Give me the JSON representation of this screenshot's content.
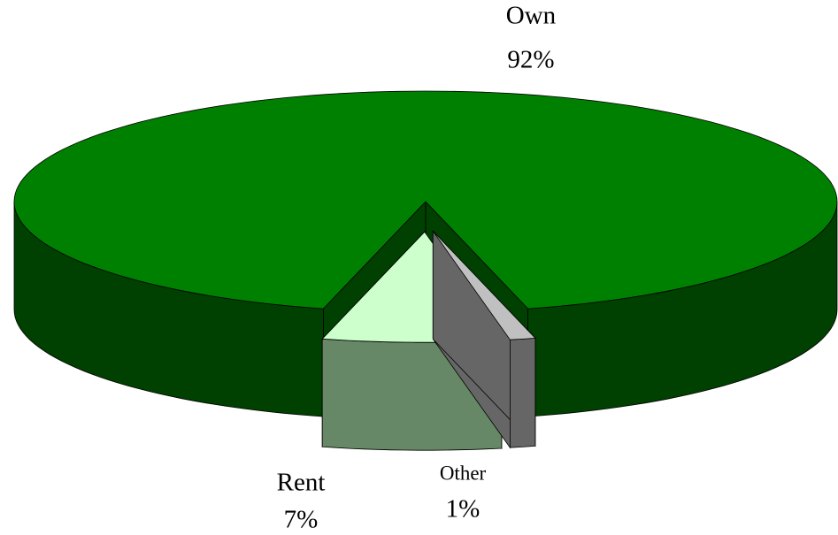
{
  "chart_data": {
    "type": "pie",
    "three_d": true,
    "categories": [
      "Own",
      "Rent",
      "Other"
    ],
    "values": [
      92,
      7,
      1
    ],
    "value_labels": [
      "92%",
      "7%",
      "1%"
    ],
    "colors": [
      "#008000",
      "#ccffcc",
      "#c0c0c0"
    ],
    "side_colors": [
      "#004000",
      "#668866",
      "#666666"
    ]
  }
}
